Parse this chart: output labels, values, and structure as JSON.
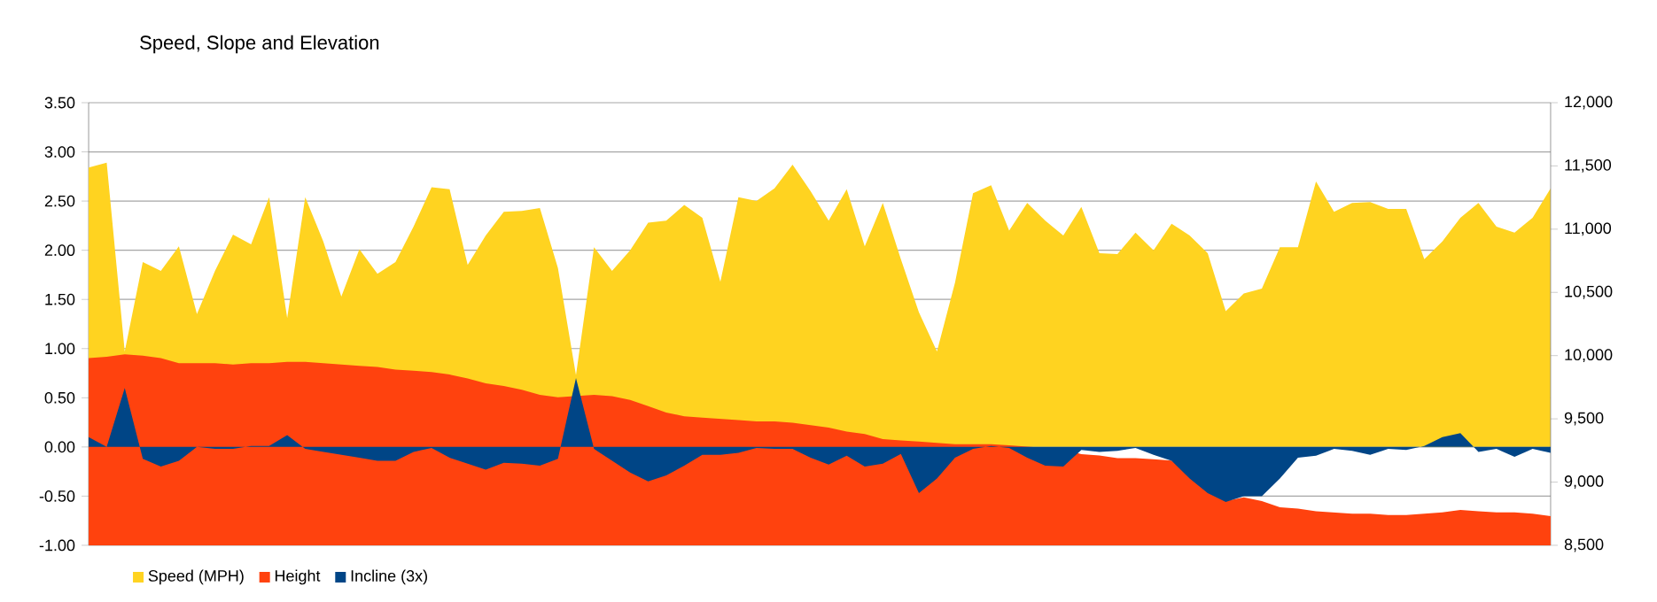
{
  "chart_data": {
    "type": "area",
    "title": "Speed, Slope and Elevation",
    "categories": [
      null,
      null,
      null,
      null,
      null,
      null,
      null,
      null,
      null,
      null,
      null,
      null,
      null,
      null,
      null,
      null,
      null,
      null,
      null,
      null,
      null,
      null,
      null,
      null,
      null,
      null,
      null,
      null,
      null,
      null,
      null,
      null,
      null,
      null,
      null,
      null,
      null,
      null,
      null,
      null,
      null,
      null,
      null,
      null,
      null,
      null,
      null,
      null,
      null,
      null,
      null,
      null,
      null,
      null,
      null,
      null,
      null,
      null,
      null,
      null,
      null,
      null,
      null,
      null,
      null,
      null,
      null,
      null,
      null,
      null,
      null,
      null,
      null,
      null,
      null,
      null,
      null,
      null,
      null,
      null,
      null,
      null
    ],
    "series": [
      {
        "name": "Speed (MPH)",
        "color": "#ffd320",
        "values": [
          2.84,
          2.89,
          0.97,
          1.88,
          1.79,
          2.04,
          1.35,
          1.79,
          2.16,
          2.06,
          2.54,
          1.31,
          2.54,
          2.09,
          1.53,
          2.01,
          1.76,
          1.88,
          2.24,
          2.64,
          2.62,
          1.85,
          2.15,
          2.39,
          2.4,
          2.43,
          1.82,
          0.73,
          2.03,
          1.79,
          2.0,
          2.28,
          2.3,
          2.46,
          2.33,
          1.68,
          2.54,
          2.5,
          2.63,
          2.87,
          2.6,
          2.3,
          2.62,
          2.04,
          2.48,
          1.91,
          1.37,
          0.97,
          1.67,
          2.58,
          2.66,
          2.2,
          2.48,
          2.3,
          2.15,
          2.44,
          1.97,
          1.96,
          2.18,
          2.0,
          2.27,
          2.15,
          1.97,
          1.38,
          1.56,
          1.61,
          2.03,
          2.03,
          2.7,
          2.39,
          2.48,
          2.49,
          2.42,
          2.42,
          1.91,
          2.09,
          2.33,
          2.48,
          2.24,
          2.18,
          2.33,
          2.63
        ]
      },
      {
        "name": "Height",
        "color": "#ff420e",
        "axis": "y2",
        "values": [
          9980,
          9990,
          10010,
          10000,
          9980,
          9940,
          9940,
          9940,
          9930,
          9940,
          9940,
          9950,
          9950,
          9940,
          9930,
          9920,
          9910,
          9890,
          9880,
          9870,
          9850,
          9820,
          9780,
          9760,
          9730,
          9690,
          9670,
          null,
          9690,
          9680,
          9650,
          9600,
          9550,
          9520,
          9510,
          9500,
          9490,
          9480,
          9480,
          9470,
          9450,
          9430,
          9400,
          9380,
          9340,
          9330,
          9320,
          9310,
          9300,
          9300,
          9300,
          9290,
          9280,
          9270,
          9260,
          9220,
          9210,
          9190,
          9190,
          9180,
          9170,
          null,
          null,
          8850,
          8880,
          8850,
          8800,
          8790,
          8770,
          8760,
          8750,
          8750,
          8740,
          8740,
          8750,
          8760,
          8780,
          8770,
          8760,
          8760,
          8750,
          8730
        ]
      },
      {
        "name": "Incline (3x)",
        "color": "#004586",
        "values": [
          0.1,
          0.0,
          0.6,
          -0.12,
          -0.2,
          -0.14,
          0.0,
          -0.02,
          -0.02,
          0.01,
          0.01,
          0.12,
          -0.02,
          -0.05,
          -0.08,
          -0.11,
          -0.14,
          -0.14,
          -0.05,
          -0.01,
          -0.11,
          -0.17,
          -0.23,
          -0.16,
          -0.17,
          -0.19,
          -0.12,
          0.7,
          -0.02,
          -0.14,
          -0.26,
          -0.35,
          -0.29,
          -0.19,
          -0.08,
          -0.08,
          -0.06,
          -0.01,
          -0.02,
          -0.02,
          -0.11,
          -0.18,
          -0.09,
          -0.2,
          -0.17,
          -0.07,
          -0.47,
          -0.32,
          -0.11,
          -0.02,
          0.01,
          -0.01,
          -0.11,
          -0.19,
          -0.2,
          -0.03,
          -0.05,
          -0.04,
          -0.01,
          -0.08,
          -0.14,
          -0.32,
          -0.47,
          -0.56,
          -0.5,
          -0.5,
          -0.32,
          -0.11,
          -0.09,
          -0.02,
          -0.04,
          -0.08,
          -0.02,
          -0.03,
          0.01,
          0.1,
          0.14,
          -0.05,
          -0.02,
          -0.1,
          -0.02,
          -0.06
        ]
      }
    ],
    "ylim": [
      -1.0,
      3.5
    ],
    "yticks": [
      {
        "value": -1.0,
        "label": "-1.00"
      },
      {
        "value": -0.5,
        "label": "-0.50"
      },
      {
        "value": 0.0,
        "label": "0.00"
      },
      {
        "value": 0.5,
        "label": "0.50"
      },
      {
        "value": 1.0,
        "label": "1.00"
      },
      {
        "value": 1.5,
        "label": "1.50"
      },
      {
        "value": 2.0,
        "label": "2.00"
      },
      {
        "value": 2.5,
        "label": "2.50"
      },
      {
        "value": 3.0,
        "label": "3.00"
      },
      {
        "value": 3.5,
        "label": "3.50"
      }
    ],
    "y2lim": [
      8500,
      12000
    ],
    "y2ticks": [
      {
        "value": 8500,
        "label": "8,500"
      },
      {
        "value": 9000,
        "label": "9,000"
      },
      {
        "value": 9500,
        "label": "9,500"
      },
      {
        "value": 10000,
        "label": "10,000"
      },
      {
        "value": 10500,
        "label": "10,500"
      },
      {
        "value": 11000,
        "label": "11,000"
      },
      {
        "value": 11500,
        "label": "11,500"
      },
      {
        "value": 12000,
        "label": "12,000"
      }
    ],
    "grid": "y",
    "legend": "bottom"
  }
}
